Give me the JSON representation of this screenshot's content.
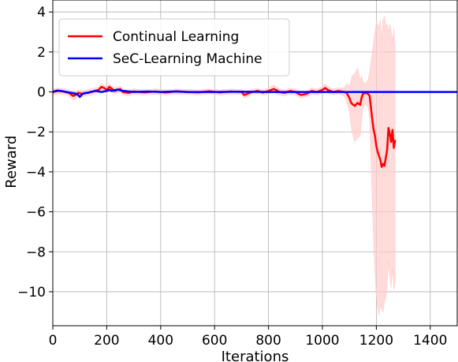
{
  "chart_data": {
    "type": "line",
    "xlabel": "Iterations",
    "ylabel": "Reward",
    "xlim": [
      0,
      1500
    ],
    "ylim": [
      -11.7,
      4.6
    ],
    "xticks": [
      0,
      200,
      400,
      600,
      800,
      1000,
      1200,
      1400
    ],
    "yticks": [
      4,
      2,
      0,
      -2,
      -4,
      -6,
      -8,
      -10
    ],
    "xtick_labels": [
      "0",
      "200",
      "400",
      "600",
      "800",
      "1000",
      "1200",
      "1400"
    ],
    "ytick_labels": [
      "4",
      "2",
      "0",
      "−2",
      "−4",
      "−6",
      "−8",
      "−10"
    ],
    "grid": true,
    "legend_position": "top-left",
    "series": [
      {
        "name": "Continual Learning",
        "color": "#ff0000",
        "band_color": "#ffcccc",
        "x": [
          0,
          20,
          40,
          60,
          75,
          85,
          95,
          110,
          125,
          140,
          155,
          170,
          180,
          190,
          200,
          210,
          220,
          230,
          240,
          250,
          260,
          280,
          300,
          340,
          380,
          420,
          460,
          500,
          540,
          580,
          620,
          660,
          700,
          710,
          720,
          740,
          760,
          780,
          800,
          820,
          830,
          840,
          860,
          880,
          900,
          920,
          940,
          960,
          980,
          1000,
          1010,
          1020,
          1040,
          1060,
          1080,
          1090,
          1100,
          1105,
          1110,
          1120,
          1130,
          1140,
          1145,
          1150,
          1160,
          1170,
          1175,
          1180,
          1185,
          1190,
          1195,
          1200,
          1205,
          1210,
          1215,
          1220,
          1225,
          1230,
          1235,
          1240,
          1245,
          1250,
          1255,
          1260,
          1265,
          1270
        ],
        "y": [
          0.0,
          0.05,
          0.02,
          -0.05,
          -0.2,
          -0.15,
          -0.05,
          -0.1,
          -0.05,
          0.0,
          0.05,
          0.1,
          0.25,
          0.2,
          0.1,
          0.25,
          0.15,
          0.05,
          0.1,
          0.15,
          0.0,
          -0.05,
          0.02,
          -0.02,
          0.02,
          -0.03,
          0.03,
          0.0,
          -0.02,
          0.03,
          -0.02,
          0.02,
          0.0,
          -0.15,
          -0.1,
          0.0,
          0.05,
          -0.03,
          0.05,
          0.15,
          0.08,
          0.0,
          -0.05,
          0.05,
          0.0,
          -0.15,
          -0.1,
          0.05,
          0.0,
          0.1,
          0.2,
          0.1,
          0.0,
          0.05,
          0.0,
          -0.05,
          -0.3,
          -0.5,
          -0.6,
          -0.7,
          -0.55,
          -0.65,
          -0.3,
          -0.1,
          -0.05,
          -0.1,
          -0.2,
          -0.8,
          -1.4,
          -1.9,
          -2.2,
          -2.7,
          -3.0,
          -3.2,
          -3.4,
          -3.75,
          -3.6,
          -3.7,
          -3.3,
          -2.9,
          -1.8,
          -2.1,
          -2.5,
          -1.9,
          -2.8,
          -2.4
        ],
        "upper": [
          0.15,
          0.2,
          0.15,
          0.1,
          0.05,
          0.05,
          0.1,
          0.05,
          0.1,
          0.15,
          0.2,
          0.25,
          0.4,
          0.35,
          0.25,
          0.4,
          0.3,
          0.2,
          0.25,
          0.3,
          0.15,
          0.1,
          0.15,
          0.1,
          0.15,
          0.1,
          0.15,
          0.12,
          0.1,
          0.15,
          0.1,
          0.15,
          0.12,
          0.0,
          0.05,
          0.12,
          0.18,
          0.1,
          0.2,
          0.35,
          0.25,
          0.15,
          0.1,
          0.2,
          0.15,
          0.0,
          0.05,
          0.2,
          0.15,
          0.25,
          0.4,
          0.25,
          0.15,
          0.2,
          0.2,
          0.4,
          0.3,
          0.5,
          0.8,
          0.9,
          1.2,
          0.6,
          0.8,
          0.5,
          0.4,
          0.6,
          1.0,
          1.5,
          2.0,
          2.5,
          3.0,
          3.5,
          3.4,
          3.2,
          3.6,
          2.6,
          3.6,
          3.8,
          3.3,
          3.4,
          3.0,
          3.4,
          3.1,
          2.5,
          3.2,
          2.2
        ],
        "lower": [
          -0.15,
          -0.1,
          -0.12,
          -0.2,
          -0.4,
          -0.35,
          -0.2,
          -0.25,
          -0.2,
          -0.15,
          -0.1,
          -0.05,
          0.1,
          0.05,
          -0.05,
          0.1,
          0.0,
          -0.1,
          -0.05,
          0.0,
          -0.15,
          -0.2,
          -0.12,
          -0.15,
          -0.12,
          -0.16,
          -0.1,
          -0.12,
          -0.15,
          -0.1,
          -0.15,
          -0.1,
          -0.12,
          -0.3,
          -0.25,
          -0.12,
          -0.08,
          -0.16,
          -0.1,
          0.0,
          -0.1,
          -0.15,
          -0.2,
          -0.1,
          -0.15,
          -0.3,
          -0.25,
          -0.1,
          -0.15,
          -0.05,
          0.0,
          -0.05,
          -0.15,
          -0.1,
          -0.2,
          -0.5,
          -1.0,
          -1.5,
          -2.0,
          -2.5,
          -2.3,
          -2.2,
          -1.5,
          -0.8,
          -0.6,
          -0.8,
          -1.4,
          -3.5,
          -5.5,
          -7.5,
          -9.0,
          -10.2,
          -10.8,
          -11.2,
          -10.6,
          -10.9,
          -11.0,
          -10.5,
          -10.3,
          -9.8,
          -8.5,
          -9.2,
          -9.8,
          -8.8,
          -9.9,
          -9.5
        ]
      },
      {
        "name": "SeC-Learning Machine",
        "color": "#0000ff",
        "x": [
          0,
          15,
          30,
          50,
          70,
          90,
          100,
          110,
          120,
          130,
          140,
          160,
          180,
          200,
          210,
          220,
          240,
          260,
          300,
          350,
          400,
          450,
          500,
          600,
          700,
          800,
          900,
          1000,
          1100,
          1200,
          1300,
          1400,
          1500
        ],
        "y": [
          0.0,
          0.07,
          0.05,
          0.0,
          -0.05,
          -0.1,
          -0.25,
          -0.1,
          -0.05,
          -0.05,
          0.0,
          0.05,
          0.0,
          0.05,
          0.1,
          0.05,
          0.12,
          0.05,
          0.0,
          0.02,
          0.0,
          0.02,
          0.0,
          0.0,
          0.01,
          0.0,
          0.0,
          0.0,
          0.0,
          0.0,
          0.0,
          0.0,
          0.0
        ]
      }
    ]
  }
}
